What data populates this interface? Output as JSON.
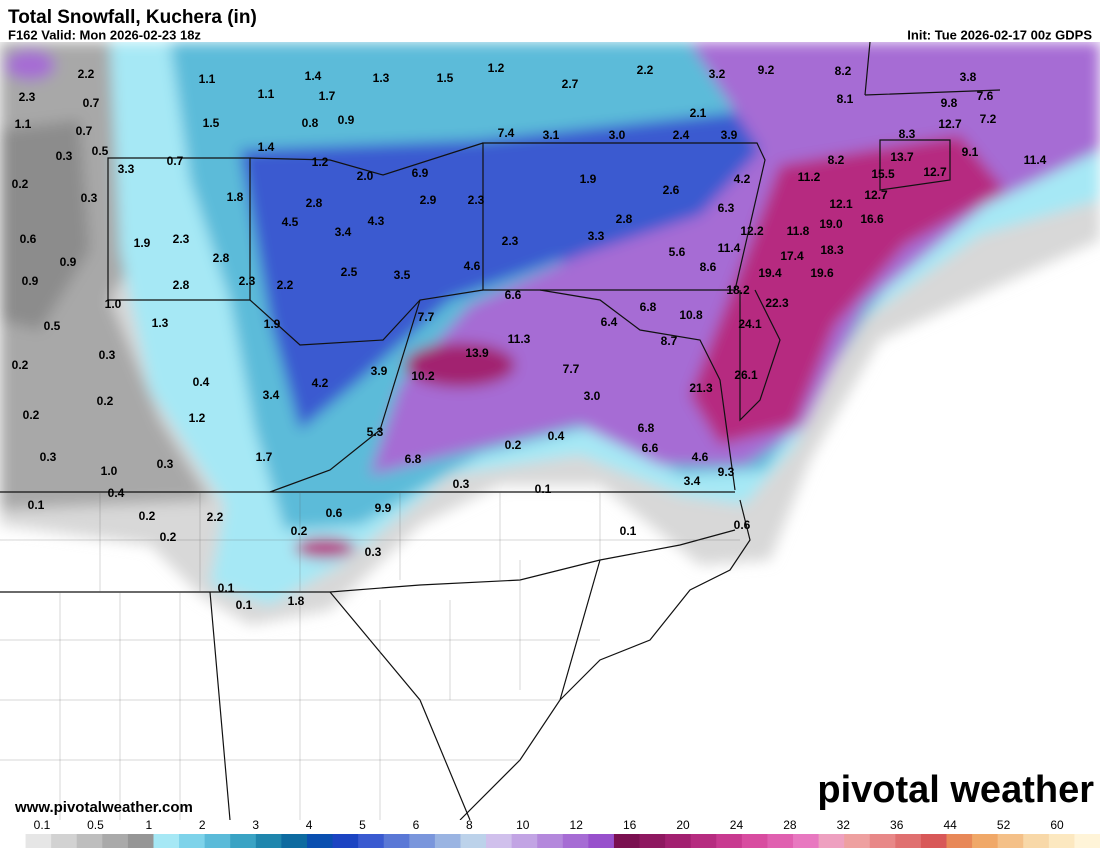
{
  "header": {
    "title": "Total Snowfall, Kuchera (in)",
    "valid": "F162 Valid: Mon 2026-02-23 18z",
    "init": "Init: Tue 2026-02-17 00z GDPS"
  },
  "labels": [
    "2.2",
    "1.1",
    "1.4",
    "1.3",
    "1.5",
    "1.2",
    "2.2",
    "3.2",
    "9.2",
    "8.2",
    "3.8",
    "2.3",
    "0.7",
    "1.1",
    "1.7",
    "2.7",
    "8.1",
    "9.8",
    "7.6",
    "1.1",
    "0.7",
    "1.5",
    "0.8",
    "0.9",
    "2.1",
    "12.7",
    "7.2",
    "0.3",
    "0.5",
    "1.4",
    "7.4",
    "3.1",
    "3.0",
    "2.4",
    "3.9",
    "8.3",
    "3.3",
    "0.7",
    "1.2",
    "2.0",
    "6.9",
    "8.2",
    "13.7",
    "9.1",
    "11.4",
    "0.2",
    "15.5",
    "12.7",
    "1.9",
    "4.2",
    "11.2",
    "0.3",
    "1.8",
    "2.8",
    "2.9",
    "2.3",
    "2.6",
    "12.7",
    "6.3",
    "12.1",
    "4.5",
    "4.3",
    "2.8",
    "16.6",
    "19.0",
    "0.6",
    "2.3",
    "3.4",
    "3.3",
    "12.2",
    "11.8",
    "1.9",
    "2.3",
    "11.4",
    "18.3",
    "5.6",
    "0.9",
    "2.8",
    "4.6",
    "17.4",
    "8.6",
    "0.9",
    "2.5",
    "3.5",
    "19.4",
    "19.6",
    "2.8",
    "2.3",
    "2.2",
    "6.6",
    "18.2",
    "22.3",
    "1.0",
    "6.8",
    "0.5",
    "1.3",
    "1.9",
    "7.7",
    "6.4",
    "10.8",
    "24.1",
    "11.3",
    "8.7",
    "0.3",
    "13.9",
    "0.2",
    "3.9",
    "7.7",
    "10.2",
    "26.1",
    "0.4",
    "4.2",
    "21.3",
    "3.4",
    "3.0",
    "0.2",
    "0.2",
    "1.2",
    "5.3",
    "6.8",
    "0.4",
    "0.2",
    "6.6",
    "0.3",
    "1.7",
    "6.8",
    "4.6",
    "0.3",
    "1.0",
    "9.3",
    "3.4",
    "0.3",
    "0.1",
    "0.4",
    "0.1",
    "9.9",
    "0.6",
    "0.2",
    "2.2",
    "0.6",
    "0.2",
    "0.1",
    "0.2",
    "0.3",
    "0.1",
    "0.1",
    "1.8"
  ],
  "footer": {
    "website": "www.pivotalweather.com",
    "logo": "pivotal weather"
  },
  "legend": {
    "ticks": [
      0.1,
      0.5,
      1,
      2,
      3,
      4,
      5,
      6,
      8,
      10,
      12,
      16,
      20,
      24,
      28,
      32,
      36,
      44,
      52,
      60
    ],
    "colors": [
      "#ffffff",
      "#e6e6e6",
      "#d2d2d2",
      "#bebebe",
      "#aaaaaa",
      "#969696",
      "#a6e8f5",
      "#7ed3ea",
      "#5bbbd9",
      "#3aa3c4",
      "#1f86ad",
      "#0e6ba0",
      "#0a4fb0",
      "#1c44c2",
      "#3a5ad0",
      "#5a78d6",
      "#7a96dc",
      "#9ab4e2",
      "#bcd2ea",
      "#d0c0ec",
      "#c2a4e4",
      "#b488dc",
      "#a66cd4",
      "#9850cc",
      "#7a1050",
      "#8e1860",
      "#a22070",
      "#b62c80",
      "#c83a90",
      "#d84ca0",
      "#e060b0",
      "#e878c0",
      "#eea0c0",
      "#eea0a0",
      "#e88888",
      "#e07070",
      "#d85858",
      "#e88858",
      "#f0a868",
      "#f4c088",
      "#f8d8a8",
      "#fce8c0",
      "#fff4d8"
    ]
  }
}
